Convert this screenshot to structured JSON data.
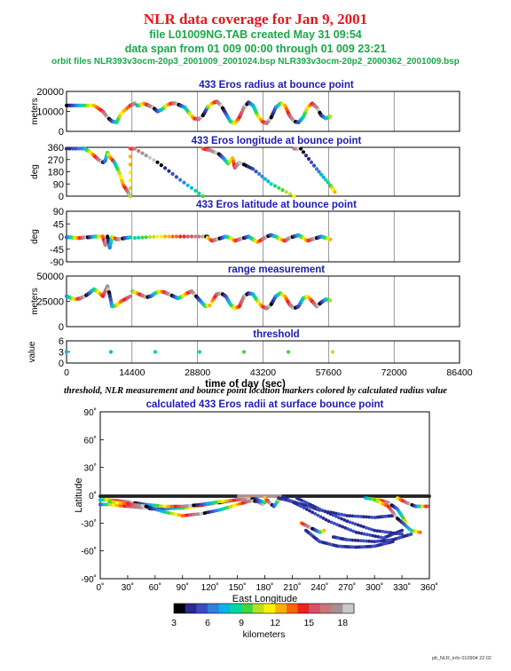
{
  "header": {
    "title": "NLR data coverage for Jan 9, 2001",
    "file_line": "file L01009NG.TAB created May 31 09:54",
    "span_line": "data span from 01 009 00:00 through 01 009 23:21",
    "orbit_line": "orbit files NLR393v3ocm-20p3_2001009_2001024.bsp NLR393v3ocm-20p2_2000362_2001009.bsp"
  },
  "caption": "threshold, NLR measurement and bounce point location markers colored by calculated radius value",
  "footer": "plt_NLR_info 010904 22:02",
  "colors": {
    "title": "#e8161b",
    "subtitle": "#1aa84a",
    "panel_title": "#1c1cb4",
    "colorbar": [
      "#000000",
      "#2a2a8c",
      "#3b4cc0",
      "#2f7fe0",
      "#00b7e5",
      "#00d7a0",
      "#3ed63e",
      "#b8e020",
      "#fff200",
      "#ffb000",
      "#ff6600",
      "#ee2222",
      "#d8506a",
      "#c87878",
      "#a89090",
      "#c8c8c8"
    ]
  },
  "chart_data": [
    {
      "type": "scatter",
      "title": "433 Eros radius at bounce point",
      "ylabel": "meters",
      "ylim": [
        0,
        20000
      ],
      "yticks": [
        "0",
        "10000",
        "20000"
      ],
      "xlim": [
        0,
        86400
      ],
      "series": [
        {
          "x": [
            0,
            2000,
            4000,
            6000,
            8000,
            9000,
            10000,
            11000,
            12000,
            14000,
            15000
          ],
          "y": [
            13000,
            13000,
            13000,
            13000,
            10000,
            7000,
            5000,
            4500,
            9000,
            13000,
            14000
          ]
        },
        {
          "x": [
            15500,
            16000,
            17000,
            18000,
            19000,
            20000,
            21000,
            22000,
            23000,
            24000,
            25000,
            26000,
            27000,
            28000,
            29000,
            30000,
            31000
          ],
          "y": [
            13000,
            13000,
            14000,
            13000,
            12000,
            10000,
            11000,
            13000,
            14000,
            14000,
            13000,
            12000,
            9000,
            6500,
            6000,
            8000,
            12000
          ]
        },
        {
          "x": [
            31000,
            32000,
            33000,
            34000,
            35000,
            36000,
            37000,
            38000,
            39000,
            40000,
            41000,
            42000,
            43000,
            44000,
            45000,
            46000,
            47000,
            48000,
            49000,
            50000,
            51000,
            52000,
            53000,
            54000,
            55000,
            56000,
            57000,
            58000
          ],
          "y": [
            12000,
            14000,
            15000,
            13000,
            9000,
            5000,
            4000,
            7000,
            12000,
            14500,
            13000,
            8000,
            5000,
            4000,
            7000,
            12000,
            14000,
            13000,
            8000,
            5000,
            4500,
            7000,
            12000,
            14000,
            12000,
            8000,
            6500,
            7500
          ]
        }
      ]
    },
    {
      "type": "scatter",
      "title": "433 Eros longitude at bounce point",
      "ylabel": "deg",
      "ylim": [
        0,
        360
      ],
      "yticks": [
        "0",
        "90",
        "180",
        "270",
        "360"
      ],
      "xlim": [
        0,
        86400
      ],
      "series": [
        {
          "x": [
            0,
            4000,
            5000,
            6000,
            7000,
            8000,
            8500,
            9000,
            9500,
            10500
          ],
          "y": [
            350,
            350,
            330,
            300,
            270,
            250,
            260,
            320,
            290,
            250
          ]
        },
        {
          "x": [
            10500,
            11500,
            12500,
            13500,
            14000
          ],
          "y": [
            250,
            180,
            80,
            30,
            0
          ]
        },
        {
          "x": [
            14000,
            14000,
            15000,
            20000,
            25000,
            30000
          ],
          "y": [
            0,
            350,
            350,
            250,
            120,
            0
          ]
        },
        {
          "x": [
            30000,
            31500,
            33500,
            34500,
            35500,
            36500,
            37000,
            38000,
            41000,
            45000,
            50000
          ],
          "y": [
            350,
            340,
            310,
            280,
            240,
            280,
            210,
            250,
            200,
            90,
            0
          ]
        },
        {
          "x": [
            50000,
            51500,
            55000,
            58000,
            59000
          ],
          "y": [
            350,
            350,
            200,
            80,
            30
          ]
        }
      ]
    },
    {
      "type": "scatter",
      "title": "433 Eros latitude at bounce point",
      "ylabel": "deg",
      "ylim": [
        -90,
        90
      ],
      "yticks": [
        "-90",
        "-45",
        "0",
        "45",
        "90"
      ],
      "xlim": [
        0,
        86400
      ],
      "series": [
        {
          "x": [
            0,
            1000,
            2000,
            3000,
            4000,
            5000,
            6000,
            7000,
            8000,
            8500,
            9000,
            9500,
            10000,
            10500,
            11000,
            12000,
            13000,
            14000
          ],
          "y": [
            -3,
            -3,
            -5,
            -5,
            -3,
            -3,
            0,
            0,
            0,
            -30,
            0,
            -40,
            -3,
            -5,
            -10,
            -8,
            -5,
            -3
          ]
        },
        {
          "x": [
            15000,
            20000,
            25000,
            30000,
            31000
          ],
          "y": [
            -5,
            0,
            0,
            0,
            0
          ]
        },
        {
          "x": [
            31000,
            32000,
            33000,
            34000,
            35000,
            36000,
            37000,
            38000,
            39000,
            40000,
            41000,
            42000,
            43000,
            44000,
            45000,
            46000,
            47000,
            48000,
            49000,
            50000,
            51000,
            52000,
            53000,
            54000,
            55000,
            56000,
            57000,
            58000
          ],
          "y": [
            -5,
            -15,
            -10,
            -5,
            0,
            -5,
            -15,
            -10,
            -5,
            0,
            -10,
            -20,
            -10,
            0,
            5,
            0,
            -10,
            -15,
            -5,
            0,
            5,
            -5,
            -15,
            -10,
            -5,
            0,
            -5,
            -10
          ]
        }
      ]
    },
    {
      "type": "scatter",
      "title": "range measurement",
      "ylabel": "meters",
      "ylim": [
        0,
        50000
      ],
      "yticks": [
        "0",
        "25000",
        "50000"
      ],
      "xlim": [
        0,
        86400
      ],
      "series": [
        {
          "x": [
            0,
            1000,
            2000,
            3000,
            4000,
            5000,
            6000,
            7000,
            8000,
            9000,
            9500,
            10000,
            11000,
            12000,
            14000
          ],
          "y": [
            30000,
            28000,
            27000,
            28000,
            30000,
            33000,
            37000,
            34000,
            30000,
            40000,
            31000,
            20000,
            21000,
            25000,
            30000
          ]
        },
        {
          "x": [
            14500,
            15500,
            16500,
            17500,
            18500,
            19500,
            20500,
            21500,
            22500,
            23500,
            24500,
            25500,
            26500,
            27500,
            28500,
            29500,
            30500,
            31500
          ],
          "y": [
            35000,
            33000,
            31000,
            29000,
            30000,
            33000,
            35000,
            34000,
            32000,
            30000,
            28000,
            30000,
            33000,
            35000,
            30000,
            25000,
            20000,
            21000
          ]
        },
        {
          "x": [
            32000,
            33000,
            34000,
            35000,
            36000,
            37000,
            38000,
            39000,
            40000,
            41000,
            42000,
            43000,
            44000,
            45000,
            46000,
            47000,
            48000,
            49000,
            50000,
            51000,
            52000,
            53000,
            54000,
            55000,
            56000,
            57000,
            58000
          ],
          "y": [
            25000,
            32000,
            33000,
            30000,
            22000,
            18000,
            20000,
            30000,
            33000,
            32000,
            25000,
            20000,
            18000,
            22000,
            30000,
            33000,
            30000,
            22000,
            18000,
            20000,
            28000,
            30000,
            25000,
            20000,
            24000,
            27000,
            26000
          ]
        }
      ]
    },
    {
      "type": "scatter",
      "title": "threshold",
      "ylabel": "value",
      "ylim": [
        0,
        6
      ],
      "yticks": [
        "0",
        "3",
        "6"
      ],
      "xlim": [
        0,
        86400
      ],
      "xlabel": "time of day (sec)",
      "xticks": [
        "0",
        "14400",
        "28800",
        "43200",
        "57600",
        "72000",
        "86400"
      ],
      "series": [
        {
          "x": [
            0,
            58500
          ],
          "y": [
            3,
            3
          ]
        }
      ]
    },
    {
      "type": "scatter",
      "title": "calculated 433 Eros radii at surface bounce point",
      "xlabel": "East Longitude",
      "ylabel": "Latitude",
      "xlim": [
        0,
        360
      ],
      "ylim": [
        -90,
        90
      ],
      "xticks": [
        "0˚",
        "30˚",
        "60˚",
        "90˚",
        "120˚",
        "150˚",
        "180˚",
        "210˚",
        "240˚",
        "270˚",
        "300˚",
        "330˚",
        "360˚"
      ],
      "yticks": [
        "90˚",
        "60˚",
        "30˚",
        "0˚",
        "-30˚",
        "-60˚",
        "-90˚"
      ],
      "colorbar": {
        "label": "kilometers",
        "ticks": [
          "3",
          "6",
          "9",
          "12",
          "15",
          "18"
        ],
        "range": [
          3,
          19
        ]
      },
      "series": [
        {
          "x": [
            0,
            30,
            60,
            90,
            120,
            150,
            180,
            210,
            240,
            270,
            300,
            330,
            360
          ],
          "y": [
            -1,
            -1,
            -1,
            -1,
            -1,
            -1,
            -1,
            -1,
            -1,
            -1,
            -1,
            -1,
            -1
          ]
        },
        {
          "x": [
            0,
            10,
            30,
            60,
            90,
            110,
            130,
            150,
            165,
            178
          ],
          "y": [
            -10,
            -10,
            -12,
            -15,
            -14,
            -11,
            -8,
            -5,
            -3,
            -10
          ]
        },
        {
          "x": [
            0,
            10,
            30,
            50,
            70,
            90,
            110,
            130,
            150,
            170,
            180
          ],
          "y": [
            -5,
            -5,
            -7,
            -10,
            -12,
            -12,
            -10,
            -7,
            -5,
            -4,
            -8
          ]
        },
        {
          "x": [
            10,
            30,
            50,
            70,
            90,
            110,
            130,
            150,
            165,
            175
          ],
          "y": [
            -7,
            -9,
            -12,
            -18,
            -22,
            -20,
            -16,
            -10,
            -6,
            -7
          ]
        },
        {
          "x": [
            180,
            185,
            190,
            195
          ],
          "y": [
            -3,
            -8,
            -12,
            -5
          ]
        },
        {
          "x": [
            195,
            215,
            240,
            270,
            300,
            320
          ],
          "y": [
            -3,
            -8,
            -16,
            -22,
            -24,
            -22
          ]
        },
        {
          "x": [
            200,
            220,
            250,
            280,
            310,
            330
          ],
          "y": [
            -2,
            -12,
            -28,
            -40,
            -46,
            -38
          ]
        },
        {
          "x": [
            215,
            240,
            270,
            300,
            330
          ],
          "y": [
            -3,
            -15,
            -28,
            -38,
            -42
          ]
        },
        {
          "x": [
            225,
            240,
            260,
            280,
            300,
            320
          ],
          "y": [
            -38,
            -50,
            -55,
            -56,
            -55,
            -50
          ]
        },
        {
          "x": [
            255,
            270,
            300,
            320,
            340
          ],
          "y": [
            -45,
            -48,
            -50,
            -48,
            -42
          ]
        },
        {
          "x": [
            290,
            305,
            315,
            325,
            335
          ],
          "y": [
            -3,
            -5,
            -8,
            -15,
            -30
          ]
        },
        {
          "x": [
            300,
            315,
            325,
            340,
            350
          ],
          "y": [
            -5,
            -12,
            -25,
            -38,
            -40
          ]
        },
        {
          "x": [
            325,
            335,
            345,
            352,
            358
          ],
          "y": [
            -3,
            -8,
            -12,
            -12,
            -12
          ]
        },
        {
          "x": [
            220,
            230,
            240,
            245
          ],
          "y": [
            -30,
            -35,
            -40,
            -38
          ]
        }
      ]
    }
  ]
}
